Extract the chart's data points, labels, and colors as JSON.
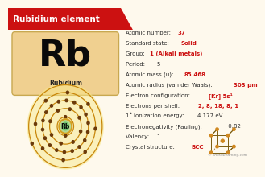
{
  "title": "Rubidium element",
  "title_bg": "#cc1111",
  "title_color": "#ffffff",
  "bg_color": "#fef9ed",
  "element_symbol": "Rb",
  "element_name": "Rubidium",
  "element_box_bg": "#f0d090",
  "element_box_edge": "#c8a850",
  "divider_color": "#bbbbbb",
  "info_label_color": "#2a2a2a",
  "info_value_red": "#cc1111",
  "properties": [
    {
      "label": "Atomic number: ",
      "value": "37",
      "red": true
    },
    {
      "label": "Standard state: ",
      "value": "Solid",
      "red": true
    },
    {
      "label": "Group: ",
      "value": "1 (Alkali metals)",
      "red": true
    },
    {
      "label": "Period:  ",
      "value": "5",
      "red": false
    },
    {
      "label": "Atomic mass (u): ",
      "value": "85.468",
      "red": true
    },
    {
      "label": "Atomic radius (van der Waals): ",
      "value": "303 pm",
      "red": true
    },
    {
      "label": "Electron configuration: ",
      "value": "[Kr] 5s¹",
      "red": true
    },
    {
      "label": "Electrons per shell: ",
      "value": "2, 8, 18, 8, 1",
      "red": true
    },
    {
      "label": "1st ionization energy: ",
      "value": " 4.177 eV",
      "red": false
    },
    {
      "label": "Electronegativity (Pauling): ",
      "value": " 0.82",
      "red": false
    },
    {
      "label": "Valency: ",
      "value": "1",
      "red": false
    },
    {
      "label": "Crystal structure: ",
      "value": "BCC",
      "red": true
    }
  ],
  "shell_radii": [
    0.072,
    0.138,
    0.2,
    0.262,
    0.32
  ],
  "shell_electrons": [
    2,
    8,
    18,
    8,
    1
  ],
  "orbit_color": "#c8860a",
  "orbit_fill": "#f5d070",
  "nucleus_outer": "#d4a020",
  "nucleus_mid": "#b8d890",
  "nucleus_inner": "#70c870",
  "electron_color": "#6b3a0a",
  "watermark": "© knordslearning.com"
}
